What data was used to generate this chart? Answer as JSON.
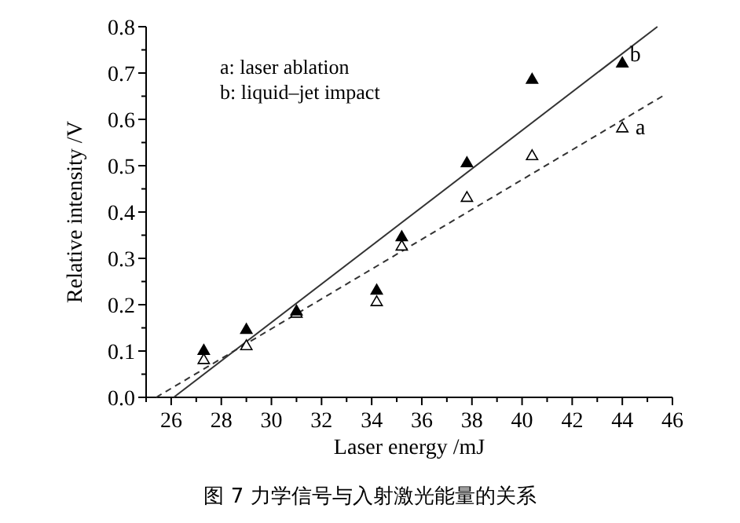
{
  "chart_data": {
    "type": "scatter",
    "title": "图 7  力学信号与入射激光能量的关系",
    "xlabel": "Laser energy /mJ",
    "ylabel": "Relative intensity /V",
    "xlim": [
      25,
      46
    ],
    "ylim": [
      0,
      0.8
    ],
    "xticks": [
      {
        "value": 25,
        "label": null
      },
      26,
      {
        "value": 27,
        "label": null
      },
      28,
      {
        "value": 29,
        "label": null
      },
      30,
      {
        "value": 31,
        "label": null
      },
      32,
      {
        "value": 33,
        "label": null
      },
      34,
      {
        "value": 35,
        "label": null
      },
      36,
      {
        "value": 37,
        "label": null
      },
      38,
      {
        "value": 39,
        "label": null
      },
      40,
      {
        "value": 41,
        "label": null
      },
      42,
      {
        "value": 43,
        "label": null
      },
      44,
      {
        "value": 45,
        "label": null
      },
      46
    ],
    "yticks": [
      {
        "value": 0,
        "label": "0.0"
      },
      {
        "value": 0.05,
        "label": null
      },
      0.1,
      {
        "value": 0.15,
        "label": null
      },
      0.2,
      {
        "value": 0.25,
        "label": null
      },
      0.3,
      {
        "value": 0.35,
        "label": null
      },
      0.4,
      {
        "value": 0.45,
        "label": null
      },
      0.5,
      {
        "value": 0.55,
        "label": null
      },
      0.6,
      {
        "value": 0.65,
        "label": null
      },
      0.7,
      {
        "value": 0.75,
        "label": null
      },
      0.8
    ],
    "grid": false,
    "series": [
      {
        "color": "#ffffff",
        "marker": "triangle",
        "x": [
          27.3,
          29,
          31,
          34.2,
          35.2,
          37.8,
          40.4,
          44
        ],
        "values": [
          0.08,
          0.11,
          0.18,
          0.205,
          0.325,
          0.43,
          0.52,
          0.58
        ]
      },
      {
        "color": "#000000",
        "marker": "triangle",
        "x": [
          27.3,
          29,
          31,
          34.2,
          35.2,
          37.8,
          40.4,
          44
        ],
        "values": [
          0.1,
          0.145,
          0.185,
          0.23,
          0.345,
          0.505,
          0.685,
          0.72
        ]
      },
      {
        "type": "line",
        "name": "a",
        "color": "#333333",
        "line_style": "dashed",
        "x": [
          25.4,
          45.6
        ],
        "values": [
          0,
          0.65
        ]
      },
      {
        "type": "line",
        "name": "b",
        "color": "#333333",
        "line_style": "solid",
        "x": [
          26.1,
          45.4
        ],
        "values": [
          0,
          0.8
        ]
      }
    ],
    "annotations": [
      "a: laser ablation",
      "b: liquid–jet impact"
    ]
  }
}
